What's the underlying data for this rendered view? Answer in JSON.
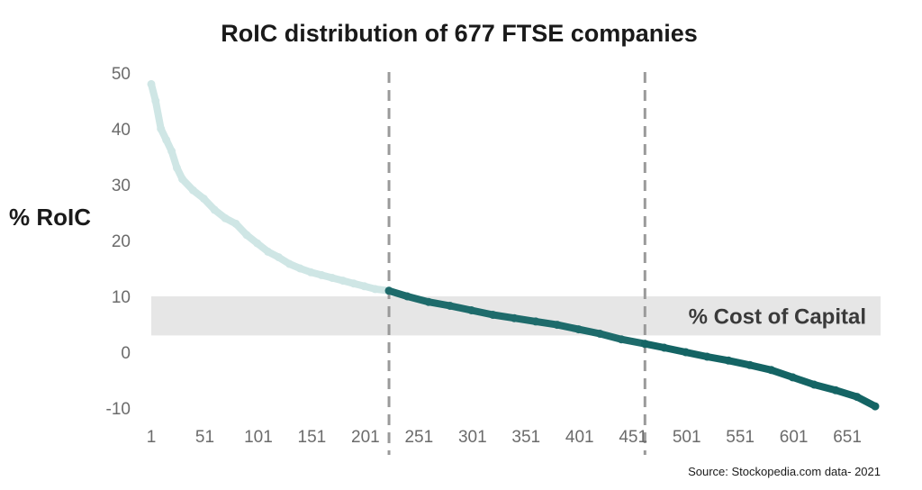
{
  "chart_data": {
    "type": "line",
    "title": "RoIC distribution of 677 FTSE companies",
    "ylabel": "% RoIC",
    "xlabel": "",
    "xlim": [
      1,
      677
    ],
    "ylim": [
      -10,
      50
    ],
    "x_ticks": [
      "1",
      "51",
      "101",
      "151",
      "201",
      "251",
      "301",
      "351",
      "401",
      "451",
      "501",
      "551",
      "601",
      "651"
    ],
    "y_ticks": [
      "50",
      "40",
      "30",
      "20",
      "10",
      "0",
      "-10"
    ],
    "band": {
      "label": "% Cost of Capital",
      "y_from": 3,
      "y_to": 10,
      "color": "#e6e6e6"
    },
    "dividers": [
      223,
      462
    ],
    "series": [
      {
        "color": "#cfe6e5",
        "x": [
          1,
          5,
          10,
          15,
          20,
          25,
          30,
          40,
          50,
          60,
          70,
          80,
          90,
          100,
          110,
          120,
          130,
          140,
          150,
          160,
          170,
          180,
          190,
          200,
          210,
          223
        ],
        "y": [
          48,
          45,
          40,
          38,
          36,
          33,
          31,
          29,
          27.5,
          25.5,
          24,
          23,
          21,
          19.5,
          18,
          17,
          15.8,
          15,
          14.3,
          13.8,
          13.3,
          12.8,
          12.3,
          11.8,
          11.3,
          11
        ]
      },
      {
        "color": "#1e6b6b",
        "x": [
          223,
          240,
          260,
          280,
          300,
          320,
          340,
          360,
          380,
          400,
          420,
          440,
          462
        ],
        "y": [
          11,
          10,
          9,
          8.3,
          7.5,
          6.7,
          6.1,
          5.5,
          4.9,
          4.1,
          3.3,
          2.3,
          1.5
        ]
      },
      {
        "color": "#146464",
        "x": [
          462,
          480,
          500,
          520,
          540,
          560,
          580,
          600,
          620,
          640,
          660,
          677
        ],
        "y": [
          1.5,
          0.8,
          0,
          -0.8,
          -1.5,
          -2.3,
          -3.2,
          -4.5,
          -5.8,
          -6.8,
          -8,
          -9.7
        ]
      }
    ],
    "source": "Source: Stockopedia.com data- 2021"
  }
}
